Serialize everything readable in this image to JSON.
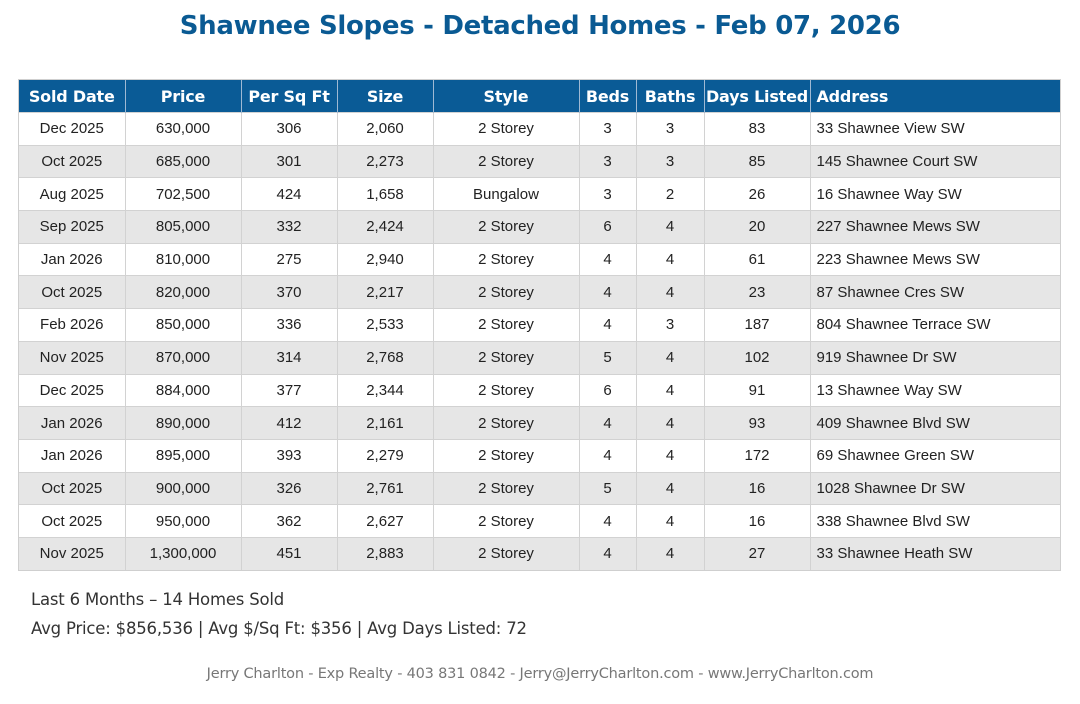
{
  "title": "Shawnee Slopes - Detached Homes - Feb 07, 2026",
  "table": {
    "headers": [
      "Sold Date",
      "Price",
      "Per Sq Ft",
      "Size",
      "Style",
      "Beds",
      "Baths",
      "Days Listed",
      "Address"
    ],
    "rows": [
      [
        "Dec 2025",
        "630,000",
        "306",
        "2,060",
        "2 Storey",
        "3",
        "3",
        "83",
        "33 Shawnee View SW"
      ],
      [
        "Oct 2025",
        "685,000",
        "301",
        "2,273",
        "2 Storey",
        "3",
        "3",
        "85",
        "145 Shawnee Court SW"
      ],
      [
        "Aug 2025",
        "702,500",
        "424",
        "1,658",
        "Bungalow",
        "3",
        "2",
        "26",
        "16 Shawnee Way SW"
      ],
      [
        "Sep 2025",
        "805,000",
        "332",
        "2,424",
        "2 Storey",
        "6",
        "4",
        "20",
        "227 Shawnee Mews SW"
      ],
      [
        "Jan 2026",
        "810,000",
        "275",
        "2,940",
        "2 Storey",
        "4",
        "4",
        "61",
        "223 Shawnee Mews SW"
      ],
      [
        "Oct 2025",
        "820,000",
        "370",
        "2,217",
        "2 Storey",
        "4",
        "4",
        "23",
        "87 Shawnee Cres SW"
      ],
      [
        "Feb 2026",
        "850,000",
        "336",
        "2,533",
        "2 Storey",
        "4",
        "3",
        "187",
        "804 Shawnee Terrace SW"
      ],
      [
        "Nov 2025",
        "870,000",
        "314",
        "2,768",
        "2 Storey",
        "5",
        "4",
        "102",
        "919 Shawnee Dr SW"
      ],
      [
        "Dec 2025",
        "884,000",
        "377",
        "2,344",
        "2 Storey",
        "6",
        "4",
        "91",
        "13 Shawnee Way SW"
      ],
      [
        "Jan 2026",
        "890,000",
        "412",
        "2,161",
        "2 Storey",
        "4",
        "4",
        "93",
        "409 Shawnee Blvd SW"
      ],
      [
        "Jan 2026",
        "895,000",
        "393",
        "2,279",
        "2 Storey",
        "4",
        "4",
        "172",
        "69 Shawnee Green SW"
      ],
      [
        "Oct 2025",
        "900,000",
        "326",
        "2,761",
        "2 Storey",
        "5",
        "4",
        "16",
        "1028 Shawnee Dr SW"
      ],
      [
        "Oct 2025",
        "950,000",
        "362",
        "2,627",
        "2 Storey",
        "4",
        "4",
        "16",
        "338 Shawnee Blvd SW"
      ],
      [
        "Nov 2025",
        "1,300,000",
        "451",
        "2,883",
        "2 Storey",
        "4",
        "4",
        "27",
        "33 Shawnee Heath SW"
      ]
    ]
  },
  "summary": {
    "line1": "Last 6 Months – 14 Homes Sold",
    "line2": "Avg Price: $856,536 | Avg $/Sq Ft: $356 | Avg Days Listed: 72"
  },
  "footer": "Jerry Charlton - Exp Realty - 403 831 0842 - Jerry@JerryCharlton.com - www.JerryCharlton.com",
  "colors": {
    "title": "#0a5a93",
    "header_bg": "#0a5b96",
    "row_alt": "#e6e6e6"
  }
}
